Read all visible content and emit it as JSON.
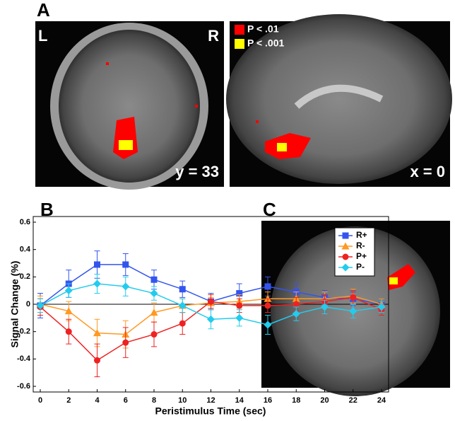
{
  "panel_labels": [
    "A",
    "B",
    "C"
  ],
  "images": [
    {
      "left": "L",
      "right": "R",
      "caption": "y = 33"
    },
    {
      "caption": "x = 0",
      "legend": [
        {
          "label": "P < .01",
          "color": "#ff0000"
        },
        {
          "label": "P < .001",
          "color": "#ffff00"
        }
      ]
    }
  ],
  "chart_data": {
    "type": "line",
    "xlabel": "Peristimulus Time (sec)",
    "ylabel": "Signal Change (%)",
    "x": [
      0,
      2,
      4,
      6,
      8,
      10,
      12,
      14,
      16,
      18,
      20,
      22,
      24
    ],
    "xlim": [
      0,
      24
    ],
    "xticks": [
      0,
      2,
      4,
      6,
      8,
      10,
      12,
      14,
      16,
      18,
      20,
      22,
      24
    ],
    "ylim": [
      -0.6,
      0.6
    ],
    "yticks": [
      -0.6,
      -0.4,
      -0.2,
      0,
      0.2,
      0.4,
      0.6
    ],
    "legend": "upper right",
    "series": [
      {
        "name": "R+",
        "color": "#3355ee",
        "marker": "square",
        "values": [
          -0.01,
          0.15,
          0.29,
          0.29,
          0.18,
          0.11,
          0.02,
          0.08,
          0.13,
          0.09,
          0.05,
          0.04,
          0.0
        ],
        "errors": [
          0.09,
          0.1,
          0.1,
          0.08,
          0.07,
          0.06,
          0.06,
          0.07,
          0.07,
          0.06,
          0.05,
          0.05,
          0.04
        ]
      },
      {
        "name": "R-",
        "color": "#ff9922",
        "marker": "triangle",
        "values": [
          0.0,
          -0.05,
          -0.21,
          -0.22,
          -0.06,
          -0.01,
          0.01,
          0.02,
          0.04,
          0.04,
          0.04,
          0.06,
          0.0
        ],
        "errors": [
          0.06,
          0.07,
          0.1,
          0.1,
          0.07,
          0.05,
          0.04,
          0.05,
          0.05,
          0.05,
          0.05,
          0.05,
          0.04
        ]
      },
      {
        "name": "P+",
        "color": "#ee2222",
        "marker": "circle",
        "values": [
          -0.02,
          -0.2,
          -0.41,
          -0.28,
          -0.22,
          -0.14,
          0.02,
          -0.01,
          -0.01,
          0.0,
          0.02,
          0.05,
          -0.04
        ],
        "errors": [
          0.06,
          0.09,
          0.12,
          0.11,
          0.09,
          0.08,
          0.05,
          0.05,
          0.05,
          0.05,
          0.05,
          0.05,
          0.04
        ]
      },
      {
        "name": "P-",
        "color": "#22ccee",
        "marker": "diamond",
        "values": [
          -0.01,
          0.1,
          0.15,
          0.13,
          0.08,
          -0.01,
          -0.11,
          -0.1,
          -0.15,
          -0.07,
          -0.02,
          -0.05,
          -0.02
        ],
        "errors": [
          0.05,
          0.05,
          0.07,
          0.07,
          0.05,
          0.05,
          0.07,
          0.06,
          0.07,
          0.05,
          0.05,
          0.05,
          0.04
        ]
      }
    ]
  }
}
